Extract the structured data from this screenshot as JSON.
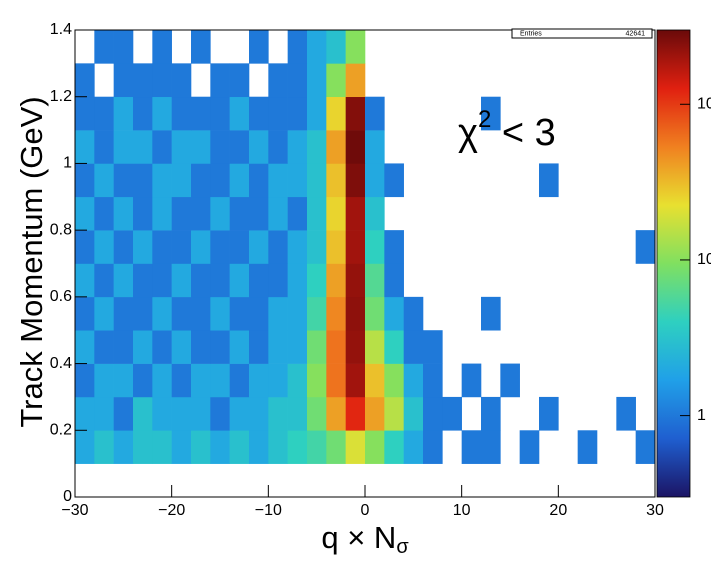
{
  "chart_data": {
    "type": "heatmap",
    "x_label": {
      "main": "q × N",
      "sub": "σ"
    },
    "y_label": "Track Momentum  (GeV)",
    "annotation": {
      "main": "χ",
      "sup": "2",
      "rest": " < 3"
    },
    "stats": {
      "label": "Entries",
      "value": 42641
    },
    "xbins": [
      -30,
      -28,
      -26,
      -24,
      -22,
      -20,
      -18,
      -16,
      -14,
      -12,
      -10,
      -8,
      -6,
      -4,
      -2,
      0,
      2,
      4,
      6,
      8,
      10,
      12,
      14,
      16,
      18,
      20,
      22,
      24,
      26,
      28,
      30
    ],
    "ybins": [
      0,
      0.1,
      0.2,
      0.3,
      0.4,
      0.5,
      0.6,
      0.7,
      0.8,
      0.9,
      1.0,
      1.1,
      1.2,
      1.3,
      1.4
    ],
    "z": [
      [
        0,
        0,
        0,
        0,
        0,
        0,
        0,
        0,
        0,
        0,
        0,
        0,
        0,
        0,
        0,
        0,
        0,
        0,
        0,
        0,
        0,
        0,
        0,
        0,
        0,
        0,
        0,
        0,
        0,
        0
      ],
      [
        2,
        3,
        2,
        3,
        3,
        2,
        3,
        2,
        3,
        2,
        3,
        4,
        5,
        8,
        20,
        10,
        4,
        2,
        1,
        0,
        1,
        1,
        0,
        1,
        0,
        0,
        1,
        0,
        0,
        1
      ],
      [
        2,
        2,
        1,
        3,
        2,
        2,
        2,
        1,
        2,
        2,
        3,
        3,
        8,
        40,
        120,
        40,
        15,
        3,
        1,
        1,
        0,
        1,
        0,
        0,
        1,
        0,
        0,
        0,
        1,
        0
      ],
      [
        1,
        2,
        2,
        1,
        2,
        1,
        2,
        2,
        1,
        2,
        2,
        3,
        10,
        60,
        200,
        30,
        10,
        2,
        1,
        0,
        1,
        0,
        1,
        0,
        0,
        0,
        0,
        0,
        0,
        0
      ],
      [
        2,
        1,
        1,
        2,
        1,
        2,
        1,
        1,
        2,
        1,
        2,
        2,
        8,
        60,
        220,
        15,
        4,
        1,
        1,
        0,
        0,
        0,
        0,
        0,
        0,
        0,
        0,
        0,
        0,
        0
      ],
      [
        1,
        2,
        1,
        1,
        2,
        1,
        1,
        2,
        1,
        1,
        2,
        2,
        5,
        50,
        230,
        8,
        2,
        1,
        0,
        0,
        0,
        1,
        0,
        0,
        0,
        0,
        0,
        0,
        0,
        0
      ],
      [
        2,
        1,
        2,
        1,
        1,
        2,
        1,
        1,
        2,
        1,
        1,
        2,
        4,
        40,
        220,
        6,
        1,
        0,
        0,
        0,
        0,
        0,
        0,
        0,
        0,
        0,
        0,
        0,
        0,
        0
      ],
      [
        1,
        2,
        1,
        2,
        1,
        1,
        2,
        1,
        1,
        2,
        1,
        2,
        3,
        30,
        200,
        4,
        1,
        0,
        0,
        0,
        0,
        0,
        0,
        0,
        0,
        0,
        0,
        0,
        0,
        1
      ],
      [
        2,
        1,
        2,
        1,
        2,
        1,
        1,
        2,
        1,
        1,
        2,
        1,
        3,
        25,
        200,
        3,
        0,
        0,
        0,
        0,
        0,
        0,
        0,
        0,
        0,
        0,
        0,
        0,
        0,
        0
      ],
      [
        1,
        2,
        1,
        1,
        2,
        2,
        1,
        1,
        2,
        1,
        2,
        2,
        3,
        30,
        260,
        2,
        1,
        0,
        0,
        0,
        0,
        0,
        0,
        0,
        1,
        0,
        0,
        0,
        0,
        0
      ],
      [
        2,
        1,
        2,
        2,
        1,
        2,
        2,
        1,
        1,
        2,
        1,
        2,
        3,
        40,
        290,
        2,
        0,
        0,
        0,
        0,
        0,
        0,
        0,
        0,
        0,
        0,
        0,
        0,
        0,
        0
      ],
      [
        1,
        1,
        2,
        1,
        2,
        1,
        1,
        1,
        2,
        1,
        1,
        1,
        2,
        25,
        250,
        1,
        0,
        0,
        0,
        0,
        0,
        1,
        0,
        0,
        0,
        0,
        0,
        0,
        0,
        0
      ],
      [
        1,
        0,
        1,
        1,
        1,
        1,
        0,
        1,
        1,
        0,
        1,
        1,
        2,
        10,
        40,
        0,
        0,
        0,
        0,
        0,
        0,
        0,
        0,
        0,
        0,
        0,
        0,
        0,
        0,
        0
      ],
      [
        0,
        1,
        1,
        0,
        1,
        0,
        1,
        0,
        0,
        1,
        0,
        1,
        2,
        3,
        10,
        0,
        0,
        0,
        0,
        0,
        0,
        0,
        0,
        0,
        0,
        0,
        0,
        0,
        0,
        0
      ]
    ],
    "xlim": [
      -30,
      30
    ],
    "ylim": [
      0,
      1.4
    ],
    "zlim": [
      0.3,
      300
    ],
    "zlog": true,
    "xticks": [
      {
        "value": -30,
        "label": "−30"
      },
      {
        "value": -20,
        "label": "−20"
      },
      {
        "value": -10,
        "label": "−10"
      },
      0,
      10,
      20,
      30
    ],
    "yticks": [
      0,
      0.2,
      0.4,
      0.6,
      0.8,
      1,
      1.2,
      1.4
    ],
    "zticks": [
      1,
      10,
      {
        "value": 100,
        "label": "10²"
      }
    ],
    "colorscale": [
      "#1b1464",
      "#1f5fd0",
      "#20a0e8",
      "#2ed0c0",
      "#80e060",
      "#e8e030",
      "#f08020",
      "#e02010",
      "#6a0a0a"
    ]
  }
}
